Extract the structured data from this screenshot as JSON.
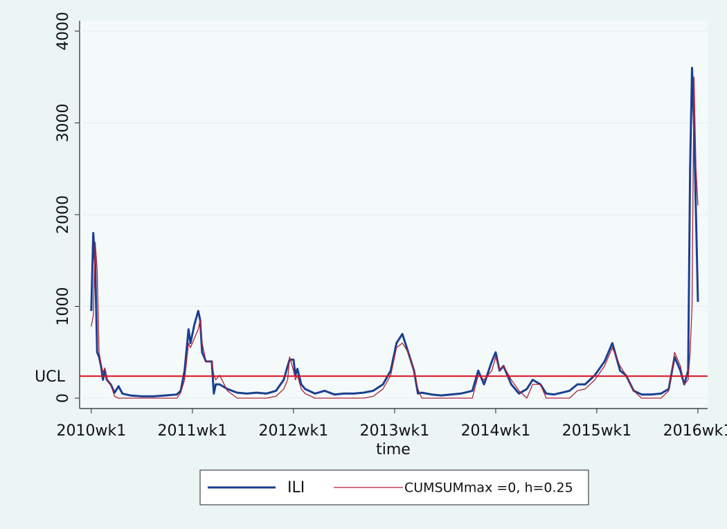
{
  "chart_data": {
    "type": "line",
    "x_label": "time",
    "xlim": [
      2594,
      2917
    ],
    "ylim": [
      -113,
      4113
    ],
    "xticks": [
      {
        "value": 2600,
        "label": "2010wk1"
      },
      {
        "value": 2652,
        "label": "2011wk1"
      },
      {
        "value": 2704,
        "label": "2012wk1"
      },
      {
        "value": 2756,
        "label": "2013wk1"
      },
      {
        "value": 2808,
        "label": "2014wk1"
      },
      {
        "value": 2860,
        "label": "2015wk1"
      },
      {
        "value": 2912,
        "label": "2016wk1"
      }
    ],
    "yticks": [
      0,
      1000,
      2000,
      3000,
      4000
    ],
    "grid": true,
    "legend": "bottom",
    "reference_line": {
      "label": "UCL",
      "value": 240,
      "color": "#d40f1f"
    },
    "x": [
      2600,
      2601,
      2602,
      2603,
      2604,
      2605,
      2606,
      2607,
      2608,
      2610,
      2612,
      2614,
      2616,
      2620,
      2626,
      2632,
      2638,
      2644,
      2646,
      2648,
      2650,
      2651,
      2653,
      2655,
      2656,
      2657,
      2659,
      2662,
      2663,
      2664,
      2666,
      2670,
      2675,
      2680,
      2685,
      2690,
      2695,
      2699,
      2701,
      2702,
      2704,
      2705,
      2706,
      2708,
      2710,
      2715,
      2720,
      2725,
      2730,
      2735,
      2740,
      2745,
      2750,
      2754,
      2757,
      2760,
      2763,
      2766,
      2768,
      2770,
      2775,
      2780,
      2785,
      2790,
      2796,
      2799,
      2802,
      2806,
      2808,
      2810,
      2812,
      2816,
      2820,
      2824,
      2827,
      2831,
      2834,
      2838,
      2842,
      2846,
      2850,
      2854,
      2859,
      2864,
      2868,
      2872,
      2875,
      2879,
      2883,
      2888,
      2893,
      2897,
      2900,
      2903,
      2905,
      2907,
      2908,
      2909,
      2910,
      2911,
      2912
    ],
    "series": [
      {
        "name": "ILI",
        "color": "#1a3f8f",
        "width": 3,
        "values": [
          950,
          1800,
          1450,
          500,
          450,
          350,
          200,
          300,
          200,
          150,
          60,
          130,
          50,
          30,
          20,
          20,
          30,
          40,
          80,
          300,
          750,
          600,
          800,
          950,
          850,
          500,
          400,
          400,
          50,
          150,
          150,
          100,
          60,
          50,
          60,
          50,
          80,
          200,
          350,
          420,
          420,
          250,
          320,
          150,
          100,
          50,
          80,
          40,
          50,
          50,
          60,
          80,
          150,
          300,
          600,
          700,
          500,
          300,
          50,
          60,
          40,
          30,
          40,
          50,
          80,
          300,
          150,
          400,
          500,
          300,
          350,
          150,
          50,
          100,
          200,
          150,
          50,
          40,
          60,
          80,
          150,
          150,
          250,
          400,
          600,
          300,
          250,
          80,
          40,
          40,
          50,
          100,
          450,
          300,
          150,
          300,
          2500,
          3600,
          3000,
          2000,
          1050
        ]
      },
      {
        "name": "CUMSUMmax =0, h=0.25",
        "color": "#b0203a",
        "width": 1.3,
        "values": [
          780,
          900,
          1700,
          1400,
          500,
          380,
          280,
          330,
          200,
          150,
          20,
          0,
          0,
          0,
          0,
          0,
          0,
          0,
          60,
          200,
          600,
          550,
          650,
          750,
          850,
          600,
          400,
          400,
          250,
          200,
          250,
          80,
          0,
          0,
          0,
          0,
          20,
          100,
          200,
          450,
          300,
          200,
          250,
          100,
          50,
          0,
          0,
          0,
          0,
          0,
          0,
          20,
          100,
          250,
          550,
          600,
          500,
          300,
          100,
          0,
          0,
          0,
          0,
          0,
          0,
          250,
          200,
          300,
          450,
          300,
          350,
          200,
          80,
          0,
          150,
          150,
          0,
          0,
          0,
          0,
          80,
          100,
          200,
          350,
          550,
          350,
          250,
          80,
          0,
          0,
          0,
          80,
          500,
          350,
          150,
          200,
          500,
          1000,
          3500,
          2500,
          2100
        ]
      }
    ]
  }
}
